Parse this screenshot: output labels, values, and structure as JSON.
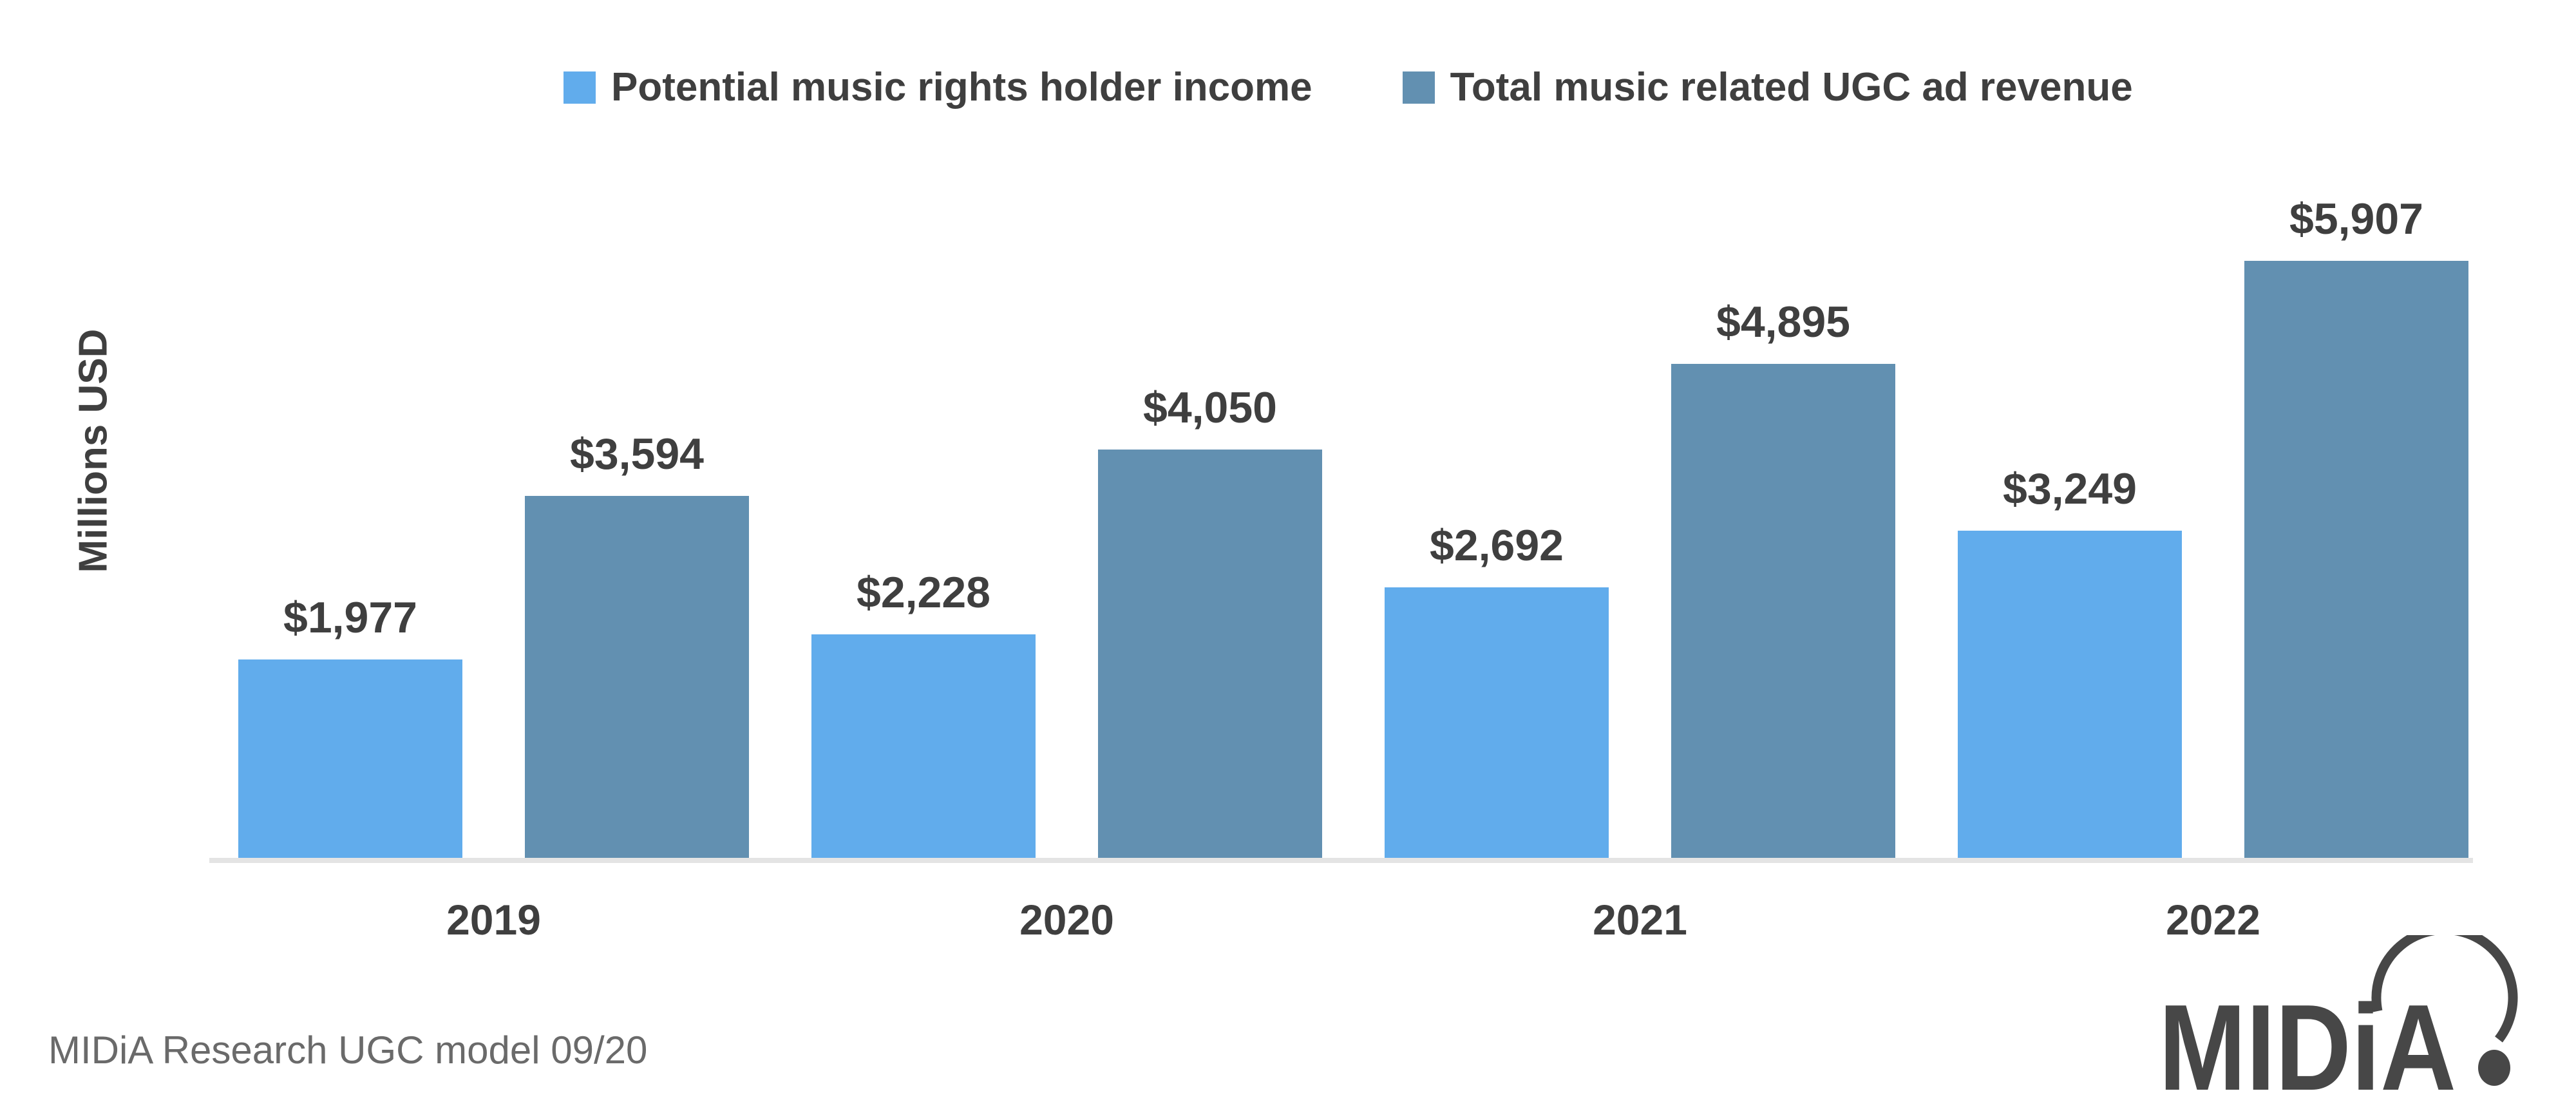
{
  "page": {
    "background": "#FFFFFF",
    "text_color": "#3F3F3F"
  },
  "legend": {
    "position": "top",
    "items": [
      {
        "label": "Potential music rights holder income",
        "color": "#61ACEC"
      },
      {
        "label": "Total music related UGC ad revenue",
        "color": "#6290B1"
      }
    ]
  },
  "y_axis": {
    "label": "Millions USD"
  },
  "footer": {
    "source_note": "MIDiA Research UGC model 09/20"
  },
  "logo": {
    "text": "MIDiA",
    "color": "#474747"
  },
  "chart_data": {
    "type": "bar",
    "title": "",
    "categories": [
      "2019",
      "2020",
      "2021",
      "2022"
    ],
    "series": [
      {
        "name": "Potential music rights holder income",
        "color": "#61ACEC",
        "values": [
          1977,
          2228,
          2692,
          3249
        ],
        "value_labels": [
          "$1,977",
          "$2,228",
          "$2,692",
          "$3,249"
        ]
      },
      {
        "name": "Total music related UGC ad revenue",
        "color": "#6290B1",
        "values": [
          3594,
          4050,
          4895,
          5907
        ],
        "value_labels": [
          "$3,594",
          "$4,050",
          "$4,895",
          "$5,907"
        ]
      }
    ],
    "xlabel": "",
    "ylabel": "Millions USD",
    "ylim": [
      0,
      6200
    ],
    "grid": false,
    "legend_position": "top",
    "value_labels_visible": true,
    "axis_line_color": "#E4E4E4"
  }
}
